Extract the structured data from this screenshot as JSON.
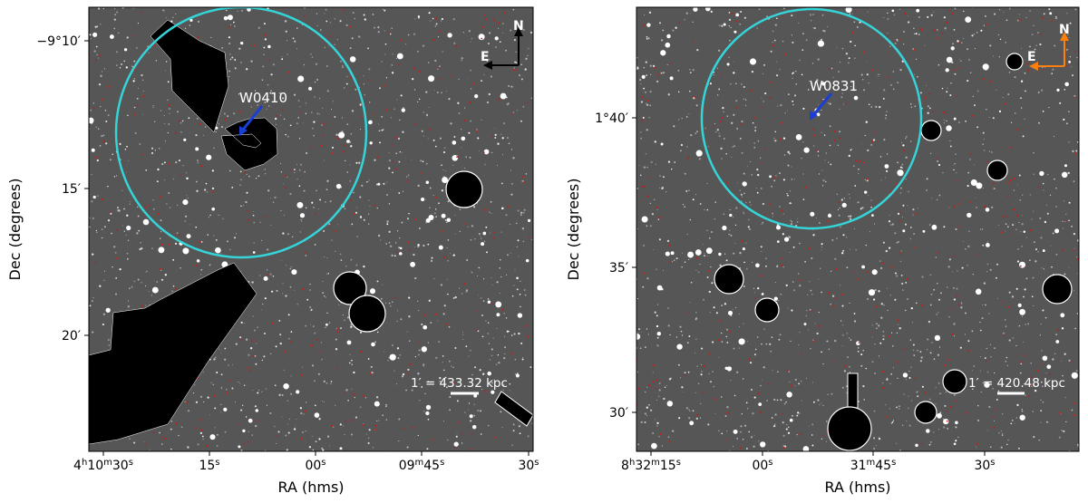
{
  "colors": {
    "sky": "#565656",
    "circle": "#35d4d8",
    "arrow_blue": "#1a3fd6",
    "compass_left": "#000000",
    "compass_right": "#ff7f0e",
    "label_white": "#ffffff"
  },
  "panels": [
    {
      "id": "left",
      "target_label": "W0410",
      "xlabel": "RA (hms)",
      "ylabel": "Dec (degrees)",
      "x_ticks": [
        {
          "h": "4",
          "m": "10",
          "s": "30",
          "fmt": "hms"
        },
        {
          "s": "15",
          "fmt": "s"
        },
        {
          "s": "00",
          "fmt": "s"
        },
        {
          "m": "09",
          "s": "45",
          "fmt": "ms"
        },
        {
          "s": "30",
          "fmt": "s"
        }
      ],
      "y_ticks": [
        "−9°10′",
        "15′",
        "20′"
      ],
      "scale_label": "1′ = 433.32 kpc",
      "compass": {
        "north": "N",
        "east": "E"
      }
    },
    {
      "id": "right",
      "target_label": "W0831",
      "xlabel": "RA (hms)",
      "ylabel": "Dec (degrees)",
      "x_ticks": [
        {
          "h": "8",
          "m": "32",
          "s": "15",
          "fmt": "hms"
        },
        {
          "s": "00",
          "fmt": "s"
        },
        {
          "m": "31",
          "s": "45",
          "fmt": "ms"
        },
        {
          "s": "30",
          "fmt": "s"
        }
      ],
      "y_ticks": [
        "1°40′",
        "35′",
        "30′"
      ],
      "scale_label": "1′ = 420.48 kpc",
      "compass": {
        "north": "N",
        "east": "E"
      }
    }
  ]
}
